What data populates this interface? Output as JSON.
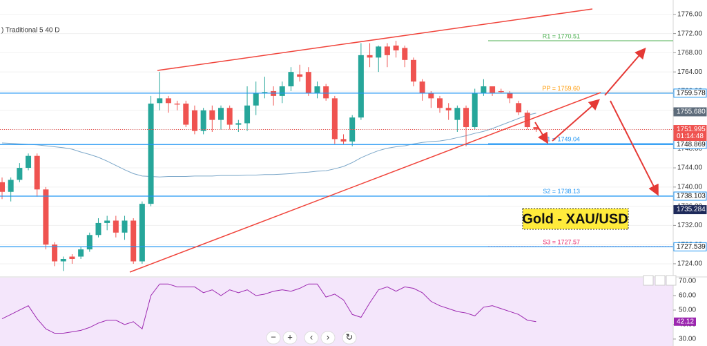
{
  "chart_data": [
    {
      "type": "candlestick",
      "indicator": ") Traditional 5 40 D",
      "annotation": "Gold - XAU/USD",
      "countdown": "01:14:48",
      "up_color": "#26a69a",
      "down_color": "#ef5350",
      "ma_color": "#7aa6c8",
      "open": [
        1741,
        1739,
        1741.5,
        1744,
        1746.5,
        1739.5,
        1728,
        1724.5,
        1725.5,
        1725.5,
        1727,
        1730,
        1732.5,
        1733,
        1730.5,
        1733,
        1724.5,
        1736.5,
        1757.5,
        1758.5,
        1757.4,
        1757.4,
        1756,
        1751.7,
        1756,
        1754,
        1756.5,
        1753,
        1753.3,
        1757,
        1759.5,
        1760,
        1759,
        1761,
        1763.5,
        1764,
        1759.5,
        1761,
        1758.5,
        1750,
        1749.5,
        1754.5,
        1767.5,
        1767,
        1769.3,
        1769.5,
        1769,
        1766.5,
        1762,
        1759.5,
        1758.5,
        1756.5,
        1754,
        1756.5,
        1752.5,
        1759.5,
        1761,
        1760,
        1759.5,
        1757.5,
        1755.5,
        1752.5
      ],
      "high": [
        1742,
        1742,
        1745,
        1747,
        1747,
        1740,
        1728.5,
        1725.5,
        1726,
        1727.5,
        1730.5,
        1733.5,
        1734,
        1734,
        1734,
        1733.5,
        1737,
        1759,
        1764,
        1759,
        1758,
        1758,
        1757,
        1756.5,
        1757,
        1757,
        1757,
        1754,
        1761,
        1762,
        1763,
        1761,
        1762,
        1765,
        1765.5,
        1765,
        1762,
        1761.5,
        1759,
        1751,
        1755,
        1770,
        1770,
        1769.5,
        1770,
        1770.5,
        1769.5,
        1767,
        1762.5,
        1760,
        1759,
        1757.5,
        1757,
        1757,
        1760.5,
        1762.5,
        1761,
        1760.5,
        1760,
        1758,
        1756,
        1752.5
      ],
      "low": [
        1737.5,
        1737,
        1741,
        1743.5,
        1738,
        1727,
        1723.5,
        1722.5,
        1724,
        1725,
        1726.5,
        1729.5,
        1731,
        1729.5,
        1729,
        1724,
        1724,
        1736,
        1756,
        1755.5,
        1756,
        1752.5,
        1751,
        1751,
        1751.5,
        1752,
        1752,
        1751.5,
        1751.7,
        1755,
        1758.5,
        1757,
        1757.5,
        1760,
        1762,
        1759,
        1758.5,
        1758,
        1749,
        1749,
        1748.5,
        1754,
        1765,
        1764,
        1765,
        1767,
        1765,
        1761,
        1758,
        1756.5,
        1755.5,
        1754,
        1751.5,
        1748.5,
        1752,
        1759,
        1759,
        1759.5,
        1757.5,
        1755,
        1752,
        1751.5
      ],
      "close": [
        1739,
        1741.5,
        1744,
        1746.5,
        1739.5,
        1728,
        1724.5,
        1725,
        1725,
        1727,
        1730,
        1732.5,
        1733,
        1730.5,
        1733,
        1724.5,
        1736.5,
        1757.4,
        1758.5,
        1757.5,
        1757.2,
        1753,
        1751.7,
        1756,
        1754,
        1756.5,
        1753,
        1753.3,
        1757,
        1759.5,
        1759.8,
        1759,
        1761,
        1764,
        1763,
        1759.5,
        1761,
        1758.5,
        1750,
        1749.5,
        1754.5,
        1767.5,
        1767,
        1769.3,
        1767.5,
        1768.5,
        1766.5,
        1762,
        1759.5,
        1758.5,
        1756.5,
        1756,
        1756.5,
        1752.5,
        1759.5,
        1761,
        1759.5,
        1759.8,
        1758.5,
        1755.6,
        1752.5,
        1752
      ],
      "ma": [
        1749.2,
        1749.1,
        1749,
        1748.9,
        1748.8,
        1748.6,
        1748.4,
        1748.2,
        1747.9,
        1747.3,
        1746.8,
        1746.2,
        1745.4,
        1744.5,
        1743.6,
        1742.8,
        1742.3,
        1742.2,
        1742.1,
        1742.2,
        1742.2,
        1742.2,
        1742.3,
        1742.3,
        1742.3,
        1742.4,
        1742.4,
        1742.4,
        1742.5,
        1742.5,
        1742.6,
        1742.6,
        1742.7,
        1742.8,
        1743,
        1743.1,
        1743.3,
        1743.4,
        1743.8,
        1744.3,
        1745.1,
        1746.1,
        1746.9,
        1747.6,
        1748.1,
        1748.4,
        1748.6,
        1749,
        1749.3,
        1749.5,
        1749.6,
        1749.9,
        1750.3,
        1750.7,
        1751.2,
        1751.6,
        1752.2,
        1752.9,
        1753.6,
        1754.3,
        1755,
        1755.4
      ],
      "ylim": [
        1721.4,
        1779.0
      ],
      "yticks": [
        {
          "value": 1724,
          "label": "1724.00"
        },
        {
          "value": 1728,
          "label": "1728.00"
        },
        {
          "value": 1732,
          "label": "1732.00"
        },
        {
          "value": 1736,
          "label": "1736.00"
        },
        {
          "value": 1740,
          "label": "1740.00"
        },
        {
          "value": 1744,
          "label": "1744.00"
        },
        {
          "value": 1748,
          "label": "1748.00"
        },
        {
          "value": 1752,
          "label": "1752.00"
        },
        {
          "value": 1756,
          "label": "1756.00"
        },
        {
          "value": 1760,
          "label": "1760.00"
        },
        {
          "value": 1764,
          "label": "1764.00"
        },
        {
          "value": 1768,
          "label": "1768.00"
        },
        {
          "value": 1772,
          "label": "1772.00"
        },
        {
          "value": 1776,
          "label": "1776.00"
        }
      ],
      "levels": [
        {
          "value": 1759.578,
          "label": "1759.578",
          "color": "#2196f3",
          "style": "line"
        },
        {
          "value": 1748.869,
          "label": "1748.869",
          "color": "#2196f3",
          "style": "line"
        },
        {
          "value": 1738.103,
          "label": "1738.103",
          "color": "#2196f3",
          "style": "line"
        },
        {
          "value": 1727.539,
          "label": "1727.539",
          "color": "#2196f3",
          "style": "line"
        },
        {
          "value": 1755.68,
          "label": "1755.680",
          "color": "#5d6b7a",
          "style": "tag"
        },
        {
          "value": 1751.995,
          "label": "1751.995",
          "color": "#ef5350",
          "style": "price"
        },
        {
          "value": 1735.284,
          "label": "1735.284",
          "color": "#1e2a5a",
          "style": "tag"
        }
      ],
      "pivots": [
        {
          "name": "R1 = 1770.51",
          "value": 1770.51,
          "color": "#4caf50"
        },
        {
          "name": "PP = 1759.60",
          "value": 1759.6,
          "color": "#ff9800"
        },
        {
          "name": "S1 = 1749.04",
          "value": 1749.04,
          "color": "#2196f3"
        },
        {
          "name": "S2 = 1738.13",
          "value": 1738.13,
          "color": "#2196f3"
        },
        {
          "name": "S3 = 1727.57",
          "value": 1727.57,
          "color": "#e91e63"
        }
      ]
    },
    {
      "type": "line",
      "color": "#9c27b0",
      "values": [
        44,
        47,
        50,
        53,
        44,
        37,
        34,
        34,
        35,
        36,
        38,
        41,
        43,
        43,
        40,
        42,
        37,
        60,
        68,
        68,
        66,
        66,
        66,
        62,
        64,
        60,
        64,
        62,
        64,
        60,
        61,
        63,
        64,
        63,
        65,
        68,
        68,
        59,
        61,
        57,
        47,
        45,
        55,
        64,
        66,
        63,
        66,
        65,
        62,
        56,
        53,
        51,
        49,
        48,
        46,
        52,
        53,
        51,
        49,
        47,
        43,
        42
      ],
      "value_labels": {
        "last": "42.12"
      },
      "ylim": [
        25.2,
        72.4
      ],
      "yticks": [
        {
          "value": 30,
          "label": "30.00"
        },
        {
          "value": 40,
          "label": "40.00"
        },
        {
          "value": 50,
          "label": "50.00"
        },
        {
          "value": 60,
          "label": "60.00"
        },
        {
          "value": 70,
          "label": "70.00"
        }
      ]
    }
  ],
  "toolbar": [
    "−",
    "+",
    "‹",
    "›",
    "↻"
  ]
}
